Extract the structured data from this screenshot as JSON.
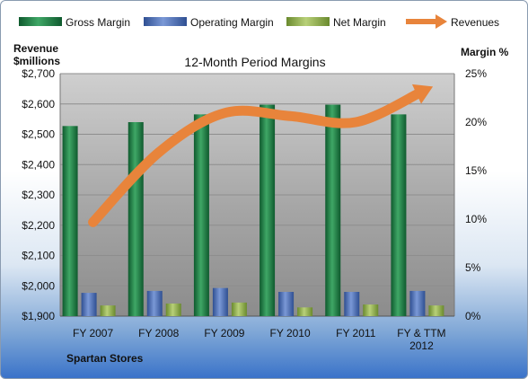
{
  "chart_data": {
    "type": "bar",
    "title": "12-Month Period Margins",
    "left_axis_title": "Revenue\n$millions",
    "right_axis_title": "Margin %",
    "footer_label": "Spartan Stores",
    "categories": [
      "FY 2007",
      "FY 2008",
      "FY 2009",
      "FY 2010",
      "FY 2011",
      "FY & TTM\n2012"
    ],
    "left_axis": {
      "min": 1900,
      "max": 2700,
      "step": 100,
      "tick_labels": [
        "$1,900",
        "$2,000",
        "$2,100",
        "$2,200",
        "$2,300",
        "$2,400",
        "$2,500",
        "$2,600",
        "$2,700"
      ]
    },
    "right_axis": {
      "min": 0,
      "max": 25,
      "step": 5,
      "tick_labels": [
        "0%",
        "5%",
        "10%",
        "15%",
        "20%",
        "25%"
      ]
    },
    "series": [
      {
        "name": "Gross Margin",
        "axis": "right",
        "type": "bar",
        "color": "#1f7a45",
        "values": [
          19.6,
          20.0,
          20.8,
          21.8,
          21.8,
          20.8
        ]
      },
      {
        "name": "Operating Margin",
        "axis": "right",
        "type": "bar",
        "color": "#4d6fb5",
        "values": [
          2.4,
          2.6,
          2.9,
          2.5,
          2.5,
          2.6
        ]
      },
      {
        "name": "Net Margin",
        "axis": "right",
        "type": "bar",
        "color": "#8fb04a",
        "values": [
          1.1,
          1.3,
          1.4,
          0.9,
          1.2,
          1.1
        ]
      },
      {
        "name": "Revenues",
        "axis": "left",
        "type": "line",
        "color": "#e8843b",
        "values": [
          2210,
          2440,
          2570,
          2560,
          2540,
          2640
        ]
      }
    ],
    "legend_position": "top"
  }
}
